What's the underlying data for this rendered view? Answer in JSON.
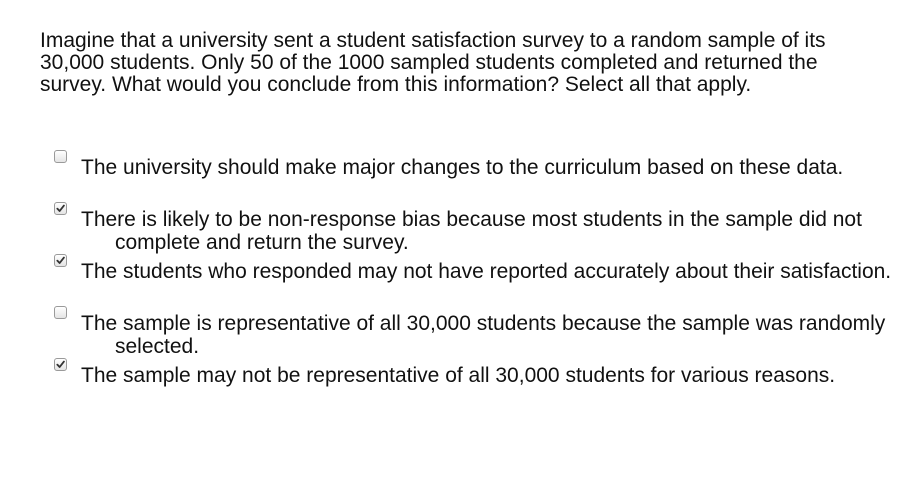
{
  "question": {
    "text": "Imagine that a university sent a student satisfaction survey to a random sample of its 30,000 students. Only 50 of the 1000 sampled students completed and returned the survey. What would you conclude from this information? Select all that apply."
  },
  "options": [
    {
      "label": "The university should make major changes to the curriculum based on these data.",
      "checked": false
    },
    {
      "label": "There is likely to be non-response bias because most students in the sample did not complete and return the survey.",
      "checked": true
    },
    {
      "label": "The students who responded may not have reported accurately about their satisfaction.",
      "checked": true
    },
    {
      "label": "The sample is representative of all 30,000 students because the sample was randomly selected.",
      "checked": false
    },
    {
      "label": "The sample may not be representative of all 30,000 students for various reasons.",
      "checked": true
    }
  ],
  "icons": {
    "check": "checkmark-icon"
  },
  "colors": {
    "text": "#111111",
    "checkbox_border": "#9a9a9a",
    "check": "#333333"
  }
}
